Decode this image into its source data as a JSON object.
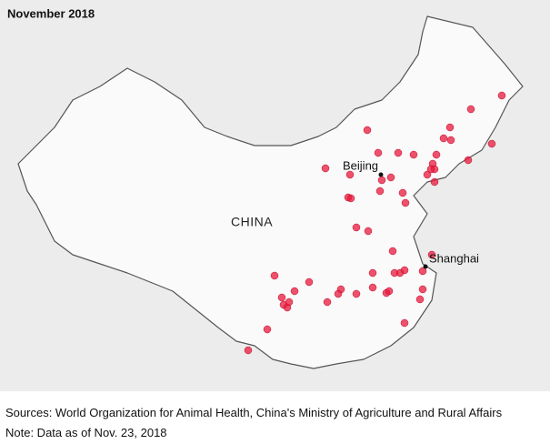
{
  "header": {
    "title": "November 2018"
  },
  "labels": {
    "country": "CHINA",
    "city_1": "Beijing",
    "city_2": "Shanghai"
  },
  "footer": {
    "sources": "Sources: World Organization for Animal Health, China's Ministry of Agriculture and Rural Affairs",
    "note": "Note: Data as of Nov. 23, 2018"
  }
}
